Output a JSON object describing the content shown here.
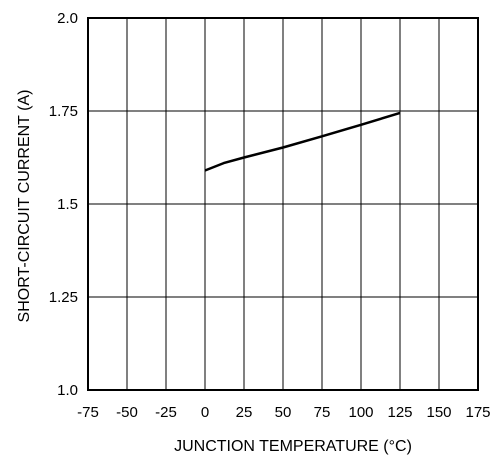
{
  "chart_data": {
    "type": "line",
    "xlabel": "JUNCTION TEMPERATURE (°C)",
    "ylabel": "SHORT-CIRCUIT CURRENT (A)",
    "xlim": [
      -75,
      175
    ],
    "ylim": [
      1.0,
      2.0
    ],
    "x_ticks": [
      -75,
      -50,
      -25,
      0,
      25,
      50,
      75,
      100,
      125,
      150,
      175
    ],
    "x_tick_labels": [
      "-75",
      "-50",
      "-25",
      "0",
      "25",
      "50",
      "75",
      "100",
      "125",
      "150",
      "175"
    ],
    "y_ticks": [
      1.0,
      1.25,
      1.5,
      1.75,
      2.0
    ],
    "y_tick_labels": [
      "1.0",
      "1.25",
      "1.5",
      "1.75",
      "2.0"
    ],
    "grid": true,
    "colors": {
      "line": "#000000",
      "grid": "#000000"
    },
    "series": [
      {
        "x": [
          0,
          12,
          25,
          50,
          75,
          100,
          125
        ],
        "y": [
          1.59,
          1.61,
          1.625,
          1.652,
          1.682,
          1.713,
          1.745
        ]
      }
    ]
  }
}
